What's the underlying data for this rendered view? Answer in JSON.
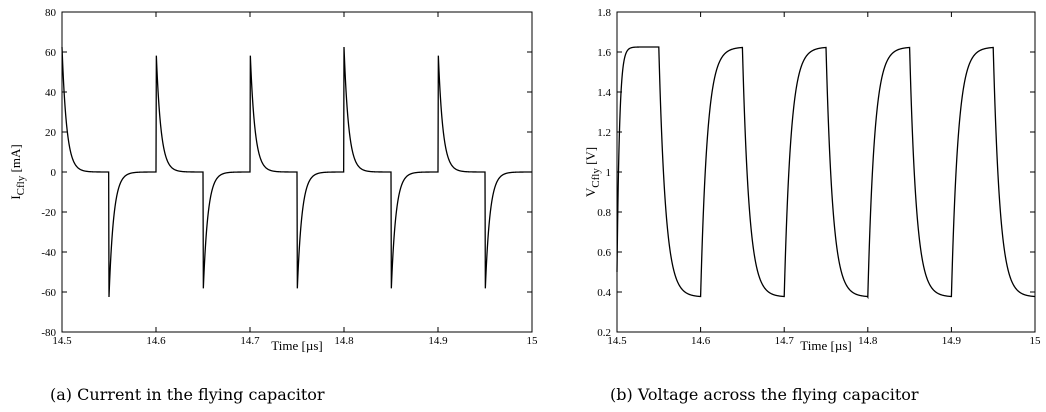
{
  "chart_data": [
    {
      "type": "line",
      "caption": "(a) Current in the flying capacitor",
      "xlabel": "Time [µs]",
      "ylabel": "I",
      "ylabel_sub": "Cfly",
      "ylabel_unit": " [mA]",
      "xlim": [
        14.5,
        15
      ],
      "ylim": [
        -80,
        80
      ],
      "xticks": [
        "14.5",
        "14.6",
        "14.7",
        "14.8",
        "14.9",
        "15"
      ],
      "yticks": [
        "80",
        "60",
        "40",
        "20",
        "0",
        "-20",
        "-40",
        "-60",
        "-80"
      ],
      "waveform": {
        "period_us": 0.1,
        "first_positive_spike_us": 14.6,
        "first_negative_spike_us": 14.55,
        "peak_positive": 62.5,
        "peak_negative": -62.5,
        "time_constant_us": 0.005
      }
    },
    {
      "type": "line",
      "caption": "(b) Voltage across the flying capacitor",
      "xlabel": "Time [µs]",
      "ylabel": "V",
      "ylabel_sub": "Cfly",
      "ylabel_unit": " [V]",
      "xlim": [
        14.5,
        15
      ],
      "ylim": [
        0.2,
        1.8
      ],
      "xticks": [
        "14.5",
        "14.6",
        "14.7",
        "14.8",
        "14.9",
        "15"
      ],
      "yticks": [
        "1.8",
        "1.6",
        "1.4",
        "1.2",
        "1",
        "0.8",
        "0.6",
        "0.4",
        "0.2"
      ],
      "waveform": {
        "period_us": 0.1,
        "rise_start_us": 14.6,
        "fall_start_us": 14.55,
        "v_high": 1.625,
        "v_low": 0.375,
        "time_constant_us": 0.005
      }
    }
  ]
}
